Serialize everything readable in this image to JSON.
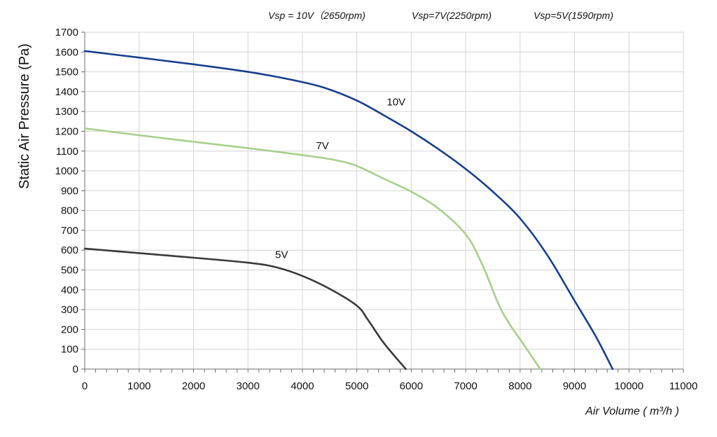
{
  "chart_data": {
    "type": "line",
    "title": "",
    "xlabel": "Air Volume ( m³/h )",
    "ylabel": "Static Air Pressure  (Pa)",
    "xlim": [
      0,
      11000
    ],
    "ylim": [
      0,
      1700
    ],
    "x_ticks": [
      0,
      1000,
      2000,
      3000,
      4000,
      5000,
      6000,
      7000,
      8000,
      9000,
      10000,
      11000
    ],
    "y_ticks": [
      0,
      100,
      200,
      300,
      400,
      500,
      600,
      700,
      800,
      900,
      1000,
      1100,
      1200,
      1300,
      1400,
      1500,
      1600,
      1700
    ],
    "grid": true,
    "legend_texts": [
      "Vsp = 10V（2650rpm)",
      "Vsp=7V(2250rpm)",
      "Vsp=5V(1590rpm)"
    ],
    "legend_position": "top",
    "series": [
      {
        "name": "10V",
        "color": "#173f8f",
        "x": [
          0,
          1000,
          2000,
          3000,
          3800,
          4400,
          5000,
          5500,
          6000,
          6500,
          7000,
          7500,
          8000,
          8500,
          9000,
          9400,
          9700
        ],
        "y": [
          1605,
          1572,
          1538,
          1500,
          1460,
          1420,
          1355,
          1280,
          1200,
          1110,
          1010,
          895,
          760,
          575,
          345,
          160,
          0
        ]
      },
      {
        "name": "7V",
        "color": "#a6d08a",
        "x": [
          0,
          1000,
          2000,
          3000,
          4000,
          4600,
          5000,
          5500,
          6000,
          6500,
          7000,
          7300,
          7600,
          7800,
          8100,
          8370
        ],
        "y": [
          1215,
          1180,
          1147,
          1115,
          1080,
          1055,
          1025,
          960,
          895,
          810,
          680,
          530,
          330,
          230,
          110,
          0
        ]
      },
      {
        "name": "5V",
        "color": "#3a3a3a",
        "x": [
          0,
          1000,
          2000,
          3000,
          3500,
          4000,
          4500,
          5000,
          5200,
          5500,
          5900
        ],
        "y": [
          608,
          585,
          562,
          537,
          515,
          470,
          405,
          320,
          250,
          130,
          0
        ]
      }
    ],
    "curve_labels": [
      {
        "text": "10V",
        "x": 5550,
        "y": 1330
      },
      {
        "text": "7V",
        "x": 4250,
        "y": 1110
      },
      {
        "text": "5V",
        "x": 3500,
        "y": 560
      }
    ]
  }
}
